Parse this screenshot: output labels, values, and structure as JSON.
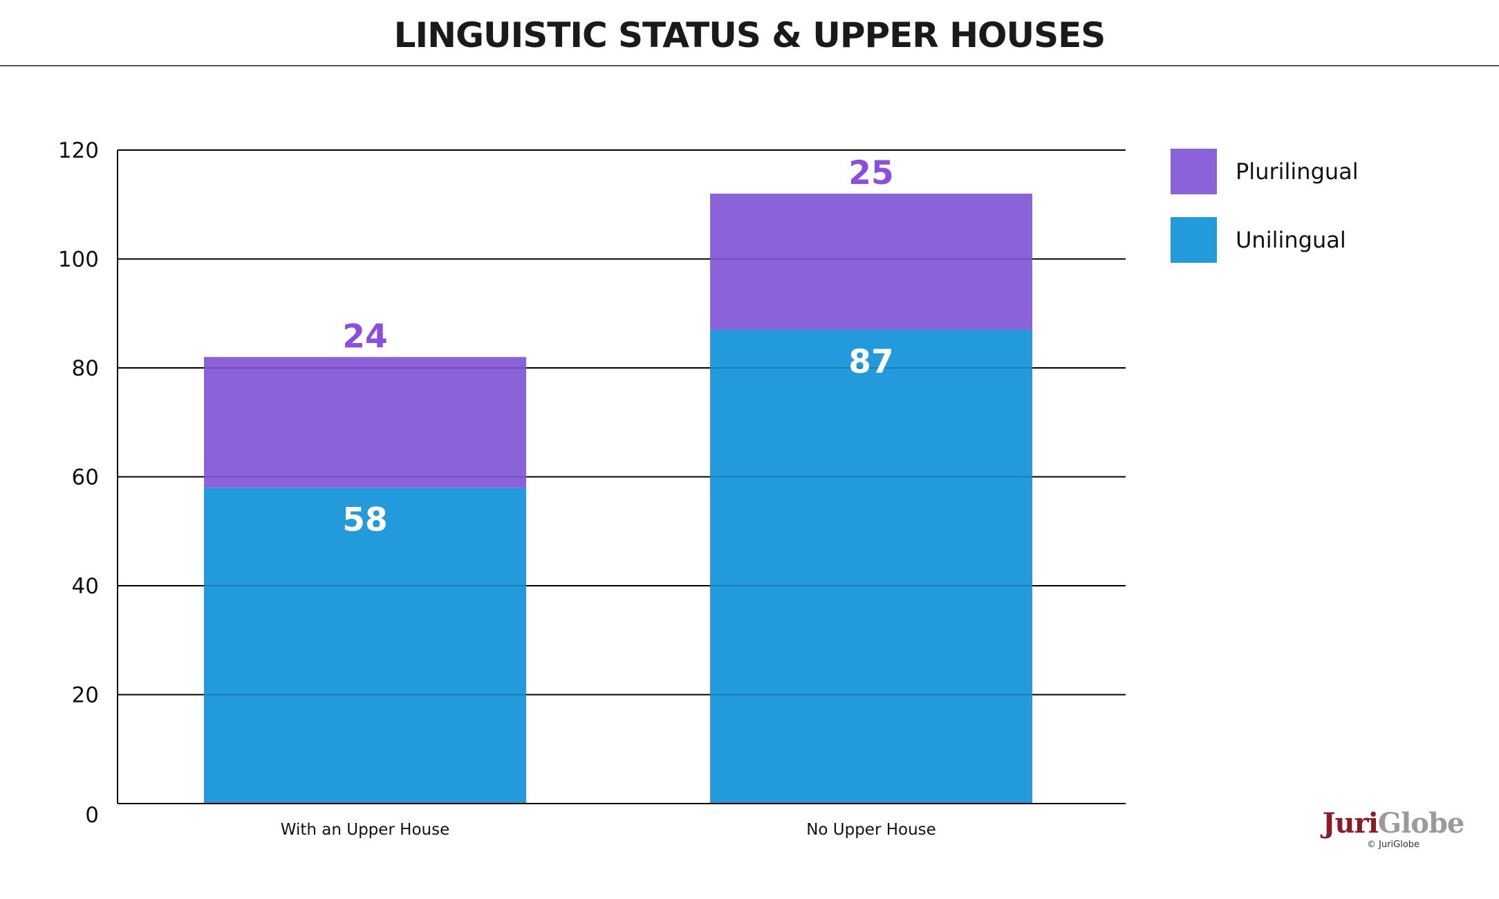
{
  "chart_data": {
    "type": "bar",
    "stacked": true,
    "title": "LINGUISTIC STATUS & UPPER HOUSES",
    "categories": [
      "With an Upper House",
      "No Upper House"
    ],
    "series": [
      {
        "name": "Unilingual",
        "values": [
          58,
          87
        ],
        "color": "#229ADC",
        "label_color": "#FFFFFF"
      },
      {
        "name": "Plurilingual",
        "values": [
          24,
          25
        ],
        "color": "#8A63DA",
        "label_color": "#8A4FE0"
      }
    ],
    "ylim": [
      0,
      120
    ],
    "yticks": [
      0,
      20,
      40,
      60,
      80,
      100,
      120
    ],
    "grid": true,
    "legend": {
      "position": "right",
      "order": [
        "Plurilingual",
        "Unilingual"
      ]
    }
  },
  "branding": {
    "logo_part1": "Juri",
    "logo_part2": "Globe",
    "copyright": "© JuriGlobe"
  }
}
